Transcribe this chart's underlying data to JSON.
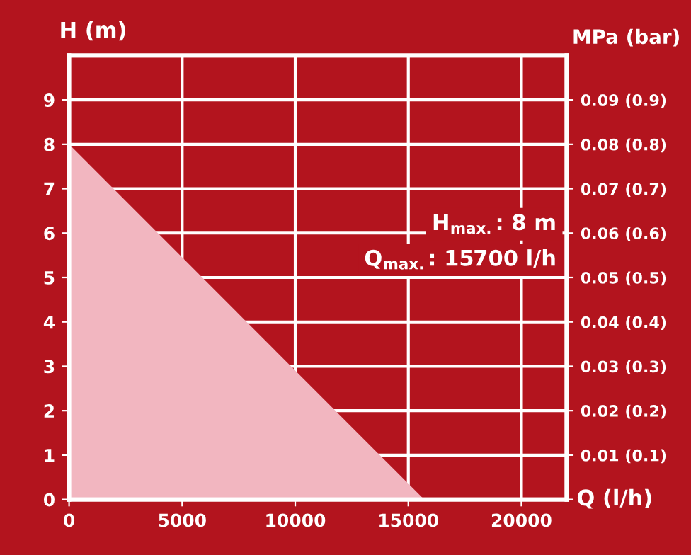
{
  "chart_data": {
    "type": "area",
    "xlabel": "Q (l/h)",
    "ylabel": "H (m)",
    "y2label": "MPa (bar)",
    "x": [
      0,
      15700
    ],
    "series": [
      {
        "color": "#f2b6c0",
        "values": [
          8,
          0
        ]
      }
    ],
    "xlim": [
      0,
      22000
    ],
    "xticks": [
      0,
      5000,
      10000,
      15000,
      20000
    ],
    "ylim": [
      0,
      10
    ],
    "yticks": [
      0,
      1,
      2,
      3,
      4,
      5,
      6,
      7,
      8,
      9
    ],
    "y2_categories": [
      "0.09 (0.9)",
      "0.08 (0.8)",
      "0.07 (0.7)",
      "0.06 (0.6)",
      "0.05 (0.5)",
      "0.04 (0.4)",
      "0.03 (0.3)",
      "0.02 (0.2)",
      "0.01 (0.1)",
      null
    ],
    "annotations": [
      "H$_{max.}$: 8 m",
      "Q$_{max.}$: 15700 l/h"
    ],
    "grid": true,
    "legend": false
  }
}
